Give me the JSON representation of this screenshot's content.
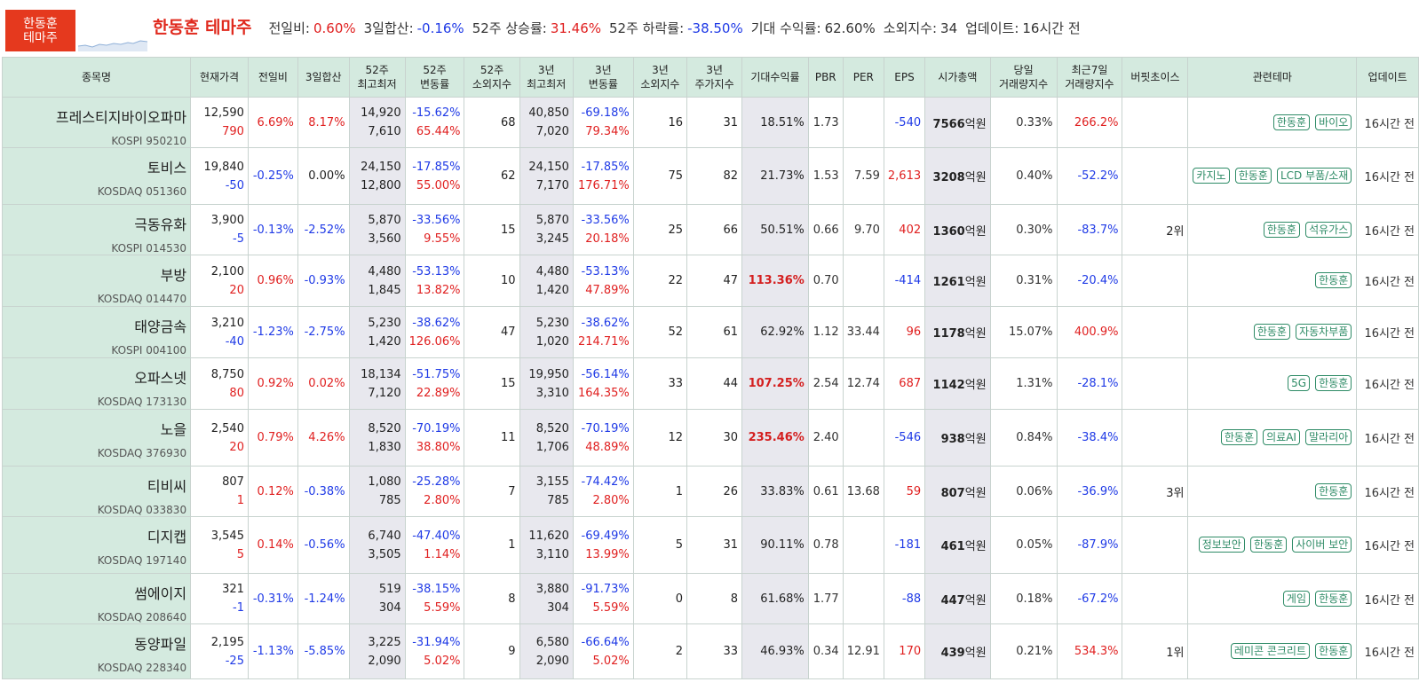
{
  "logo": {
    "line1": "한동훈",
    "line2": "테마주"
  },
  "summary": {
    "title": "한동훈 테마주",
    "items": [
      {
        "label": "전일비:",
        "value": "0.60%",
        "tone": "pos"
      },
      {
        "label": "3일합산:",
        "value": "-0.16%",
        "tone": "neg"
      },
      {
        "label": "52주 상승률:",
        "value": "31.46%",
        "tone": "pos"
      },
      {
        "label": "52주 하락률:",
        "value": "-38.50%",
        "tone": "neg"
      },
      {
        "label": "기대 수익률:",
        "value": "62.60%",
        "tone": ""
      },
      {
        "label": "소외지수:",
        "value": "34",
        "tone": ""
      },
      {
        "label": "업데이트:",
        "value": "16시간 전",
        "tone": ""
      }
    ]
  },
  "columns": [
    "종목명",
    "현재가격",
    "전일비",
    "3일합산",
    "52주\n최고최저",
    "52주\n변동률",
    "52주\n소외지수",
    "3년\n최고최저",
    "3년\n변동률",
    "3년\n소외지수",
    "3년\n주가지수",
    "기대수익률",
    "PBR",
    "PER",
    "EPS",
    "시가총액",
    "당일\n거래량지수",
    "최근7일\n거래량지수",
    "버핏초이스",
    "관련테마",
    "업데이트"
  ],
  "rows": [
    {
      "name": "프레스티지바이오파마",
      "code": "KOSPI 950210",
      "price": "12,590",
      "change": "790",
      "change_tone": "pos",
      "day": "6.69%",
      "day_tone": "pos",
      "d3": "8.17%",
      "d3_tone": "pos",
      "w52_high": "14,920",
      "w52_low": "7,610",
      "w52_down": "-15.62%",
      "w52_up": "65.44%",
      "w52_idx": "68",
      "y3_high": "40,850",
      "y3_low": "7,020",
      "y3_down": "-69.18%",
      "y3_up": "79.34%",
      "y3_idx": "16",
      "y3_price_idx": "31",
      "expected": "18.51%",
      "expected_bold": false,
      "pbr": "1.73",
      "per": "",
      "eps": "-540",
      "eps_tone": "neg",
      "cap": "7566",
      "cap_unit": "억원",
      "vol_day": "0.33%",
      "vol7": "266.2%",
      "vol7_tone": "pos",
      "buffett": "",
      "themes": [
        "한동훈",
        "바이오"
      ],
      "updated": "16시간 전"
    },
    {
      "name": "토비스",
      "code": "KOSDAQ 051360",
      "price": "19,840",
      "change": "-50",
      "change_tone": "neg",
      "day": "-0.25%",
      "day_tone": "neg",
      "d3": "0.00%",
      "d3_tone": "",
      "w52_high": "24,150",
      "w52_low": "12,800",
      "w52_down": "-17.85%",
      "w52_up": "55.00%",
      "w52_idx": "62",
      "y3_high": "24,150",
      "y3_low": "7,170",
      "y3_down": "-17.85%",
      "y3_up": "176.71%",
      "y3_idx": "75",
      "y3_price_idx": "82",
      "expected": "21.73%",
      "expected_bold": false,
      "pbr": "1.53",
      "per": "7.59",
      "eps": "2,613",
      "eps_tone": "pos",
      "cap": "3208",
      "cap_unit": "억원",
      "vol_day": "0.40%",
      "vol7": "-52.2%",
      "vol7_tone": "neg",
      "buffett": "",
      "themes": [
        "카지노",
        "한동훈",
        "LCD 부품/소재"
      ],
      "updated": "16시간 전"
    },
    {
      "name": "극동유화",
      "code": "KOSPI 014530",
      "price": "3,900",
      "change": "-5",
      "change_tone": "neg",
      "day": "-0.13%",
      "day_tone": "neg",
      "d3": "-2.52%",
      "d3_tone": "neg",
      "w52_high": "5,870",
      "w52_low": "3,560",
      "w52_down": "-33.56%",
      "w52_up": "9.55%",
      "w52_idx": "15",
      "y3_high": "5,870",
      "y3_low": "3,245",
      "y3_down": "-33.56%",
      "y3_up": "20.18%",
      "y3_idx": "25",
      "y3_price_idx": "66",
      "expected": "50.51%",
      "expected_bold": false,
      "pbr": "0.66",
      "per": "9.70",
      "eps": "402",
      "eps_tone": "pos",
      "cap": "1360",
      "cap_unit": "억원",
      "vol_day": "0.30%",
      "vol7": "-83.7%",
      "vol7_tone": "neg",
      "buffett": "2위",
      "themes": [
        "한동훈",
        "석유가스"
      ],
      "updated": "16시간 전"
    },
    {
      "name": "부방",
      "code": "KOSDAQ 014470",
      "price": "2,100",
      "change": "20",
      "change_tone": "pos",
      "day": "0.96%",
      "day_tone": "pos",
      "d3": "-0.93%",
      "d3_tone": "neg",
      "w52_high": "4,480",
      "w52_low": "1,845",
      "w52_down": "-53.13%",
      "w52_up": "13.82%",
      "w52_idx": "10",
      "y3_high": "4,480",
      "y3_low": "1,420",
      "y3_down": "-53.13%",
      "y3_up": "47.89%",
      "y3_idx": "22",
      "y3_price_idx": "47",
      "expected": "113.36%",
      "expected_bold": true,
      "pbr": "0.70",
      "per": "",
      "eps": "-414",
      "eps_tone": "neg",
      "cap": "1261",
      "cap_unit": "억원",
      "vol_day": "0.31%",
      "vol7": "-20.4%",
      "vol7_tone": "neg",
      "buffett": "",
      "themes": [
        "한동훈"
      ],
      "updated": "16시간 전"
    },
    {
      "name": "태양금속",
      "code": "KOSPI 004100",
      "price": "3,210",
      "change": "-40",
      "change_tone": "neg",
      "day": "-1.23%",
      "day_tone": "neg",
      "d3": "-2.75%",
      "d3_tone": "neg",
      "w52_high": "5,230",
      "w52_low": "1,420",
      "w52_down": "-38.62%",
      "w52_up": "126.06%",
      "w52_idx": "47",
      "y3_high": "5,230",
      "y3_low": "1,020",
      "y3_down": "-38.62%",
      "y3_up": "214.71%",
      "y3_idx": "52",
      "y3_price_idx": "61",
      "expected": "62.92%",
      "expected_bold": false,
      "pbr": "1.12",
      "per": "33.44",
      "eps": "96",
      "eps_tone": "pos",
      "cap": "1178",
      "cap_unit": "억원",
      "vol_day": "15.07%",
      "vol7": "400.9%",
      "vol7_tone": "pos",
      "buffett": "",
      "themes": [
        "한동훈",
        "자동차부품"
      ],
      "updated": "16시간 전"
    },
    {
      "name": "오파스넷",
      "code": "KOSDAQ 173130",
      "price": "8,750",
      "change": "80",
      "change_tone": "pos",
      "day": "0.92%",
      "day_tone": "pos",
      "d3": "0.02%",
      "d3_tone": "pos",
      "w52_high": "18,134",
      "w52_low": "7,120",
      "w52_down": "-51.75%",
      "w52_up": "22.89%",
      "w52_idx": "15",
      "y3_high": "19,950",
      "y3_low": "3,310",
      "y3_down": "-56.14%",
      "y3_up": "164.35%",
      "y3_idx": "33",
      "y3_price_idx": "44",
      "expected": "107.25%",
      "expected_bold": true,
      "pbr": "2.54",
      "per": "12.74",
      "eps": "687",
      "eps_tone": "pos",
      "cap": "1142",
      "cap_unit": "억원",
      "vol_day": "1.31%",
      "vol7": "-28.1%",
      "vol7_tone": "neg",
      "buffett": "",
      "themes": [
        "5G",
        "한동훈"
      ],
      "updated": "16시간 전"
    },
    {
      "name": "노을",
      "code": "KOSDAQ 376930",
      "price": "2,540",
      "change": "20",
      "change_tone": "pos",
      "day": "0.79%",
      "day_tone": "pos",
      "d3": "4.26%",
      "d3_tone": "pos",
      "w52_high": "8,520",
      "w52_low": "1,830",
      "w52_down": "-70.19%",
      "w52_up": "38.80%",
      "w52_idx": "11",
      "y3_high": "8,520",
      "y3_low": "1,706",
      "y3_down": "-70.19%",
      "y3_up": "48.89%",
      "y3_idx": "12",
      "y3_price_idx": "30",
      "expected": "235.46%",
      "expected_bold": true,
      "pbr": "2.40",
      "per": "",
      "eps": "-546",
      "eps_tone": "neg",
      "cap": "938",
      "cap_unit": "억원",
      "vol_day": "0.84%",
      "vol7": "-38.4%",
      "vol7_tone": "neg",
      "buffett": "",
      "themes": [
        "한동훈",
        "의료AI",
        "말라리아"
      ],
      "updated": "16시간 전"
    },
    {
      "name": "티비씨",
      "code": "KOSDAQ 033830",
      "price": "807",
      "change": "1",
      "change_tone": "pos",
      "day": "0.12%",
      "day_tone": "pos",
      "d3": "-0.38%",
      "d3_tone": "neg",
      "w52_high": "1,080",
      "w52_low": "785",
      "w52_down": "-25.28%",
      "w52_up": "2.80%",
      "w52_idx": "7",
      "y3_high": "3,155",
      "y3_low": "785",
      "y3_down": "-74.42%",
      "y3_up": "2.80%",
      "y3_idx": "1",
      "y3_price_idx": "26",
      "expected": "33.83%",
      "expected_bold": false,
      "pbr": "0.61",
      "per": "13.68",
      "eps": "59",
      "eps_tone": "pos",
      "cap": "807",
      "cap_unit": "억원",
      "vol_day": "0.06%",
      "vol7": "-36.9%",
      "vol7_tone": "neg",
      "buffett": "3위",
      "themes": [
        "한동훈"
      ],
      "updated": "16시간 전"
    },
    {
      "name": "디지캡",
      "code": "KOSDAQ 197140",
      "price": "3,545",
      "change": "5",
      "change_tone": "pos",
      "day": "0.14%",
      "day_tone": "pos",
      "d3": "-0.56%",
      "d3_tone": "neg",
      "w52_high": "6,740",
      "w52_low": "3,505",
      "w52_down": "-47.40%",
      "w52_up": "1.14%",
      "w52_idx": "1",
      "y3_high": "11,620",
      "y3_low": "3,110",
      "y3_down": "-69.49%",
      "y3_up": "13.99%",
      "y3_idx": "5",
      "y3_price_idx": "31",
      "expected": "90.11%",
      "expected_bold": false,
      "pbr": "0.78",
      "per": "",
      "eps": "-181",
      "eps_tone": "neg",
      "cap": "461",
      "cap_unit": "억원",
      "vol_day": "0.05%",
      "vol7": "-87.9%",
      "vol7_tone": "neg",
      "buffett": "",
      "themes": [
        "정보보안",
        "한동훈",
        "사이버 보안"
      ],
      "updated": "16시간 전"
    },
    {
      "name": "썸에이지",
      "code": "KOSDAQ 208640",
      "price": "321",
      "change": "-1",
      "change_tone": "neg",
      "day": "-0.31%",
      "day_tone": "neg",
      "d3": "-1.24%",
      "d3_tone": "neg",
      "w52_high": "519",
      "w52_low": "304",
      "w52_down": "-38.15%",
      "w52_up": "5.59%",
      "w52_idx": "8",
      "y3_high": "3,880",
      "y3_low": "304",
      "y3_down": "-91.73%",
      "y3_up": "5.59%",
      "y3_idx": "0",
      "y3_price_idx": "8",
      "expected": "61.68%",
      "expected_bold": false,
      "pbr": "1.77",
      "per": "",
      "eps": "-88",
      "eps_tone": "neg",
      "cap": "447",
      "cap_unit": "억원",
      "vol_day": "0.18%",
      "vol7": "-67.2%",
      "vol7_tone": "neg",
      "buffett": "",
      "themes": [
        "게임",
        "한동훈"
      ],
      "updated": "16시간 전"
    },
    {
      "name": "동양파일",
      "code": "KOSDAQ 228340",
      "price": "2,195",
      "change": "-25",
      "change_tone": "neg",
      "day": "-1.13%",
      "day_tone": "neg",
      "d3": "-5.85%",
      "d3_tone": "neg",
      "w52_high": "3,225",
      "w52_low": "2,090",
      "w52_down": "-31.94%",
      "w52_up": "5.02%",
      "w52_idx": "9",
      "y3_high": "6,580",
      "y3_low": "2,090",
      "y3_down": "-66.64%",
      "y3_up": "5.02%",
      "y3_idx": "2",
      "y3_price_idx": "33",
      "expected": "46.93%",
      "expected_bold": false,
      "pbr": "0.34",
      "per": "12.91",
      "eps": "170",
      "eps_tone": "pos",
      "cap": "439",
      "cap_unit": "억원",
      "vol_day": "0.21%",
      "vol7": "534.3%",
      "vol7_tone": "pos",
      "buffett": "1위",
      "themes": [
        "레미콘 콘크리트",
        "한동훈"
      ],
      "updated": "16시간 전"
    }
  ]
}
